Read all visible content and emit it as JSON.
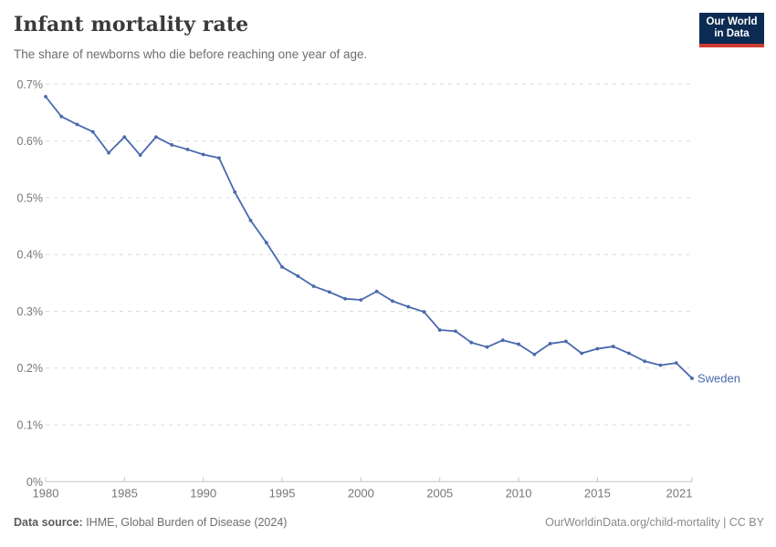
{
  "header": {
    "title": "Infant mortality rate",
    "subtitle": "The share of newborns who die before reaching one year of age.",
    "logo": {
      "line1": "Our World",
      "line2": "in Data",
      "bg_color": "#0c2b52",
      "accent_color": "#d13b32"
    }
  },
  "chart_data": {
    "type": "line",
    "title": "Infant mortality rate",
    "xlabel": "",
    "ylabel": "",
    "unit": "%",
    "xlim": [
      1980,
      2021
    ],
    "ylim": [
      0,
      0.7
    ],
    "grid": "horizontal-dashed",
    "legend_position": "end-of-line-label",
    "x_ticks": [
      1980,
      1985,
      1990,
      1995,
      2000,
      2005,
      2010,
      2015,
      2021
    ],
    "y_ticks": [
      0,
      0.1,
      0.2,
      0.3,
      0.4,
      0.5,
      0.6,
      0.7
    ],
    "y_tick_labels": [
      "0%",
      "0.1%",
      "0.2%",
      "0.3%",
      "0.4%",
      "0.5%",
      "0.6%",
      "0.7%"
    ],
    "series": [
      {
        "name": "Sweden",
        "color": "#4a69ad",
        "x": [
          1980,
          1981,
          1982,
          1983,
          1984,
          1985,
          1986,
          1987,
          1988,
          1989,
          1990,
          1991,
          1992,
          1993,
          1994,
          1995,
          1996,
          1997,
          1998,
          1999,
          2000,
          2001,
          2002,
          2003,
          2004,
          2005,
          2006,
          2007,
          2008,
          2009,
          2010,
          2011,
          2012,
          2013,
          2014,
          2015,
          2016,
          2017,
          2018,
          2019,
          2020,
          2021
        ],
        "values": [
          0.678,
          0.643,
          0.629,
          0.616,
          0.579,
          0.607,
          0.575,
          0.607,
          0.593,
          0.585,
          0.576,
          0.57,
          0.51,
          0.46,
          0.421,
          0.378,
          0.362,
          0.344,
          0.334,
          0.322,
          0.32,
          0.335,
          0.318,
          0.308,
          0.299,
          0.267,
          0.265,
          0.245,
          0.237,
          0.249,
          0.242,
          0.224,
          0.243,
          0.247,
          0.226,
          0.234,
          0.238,
          0.226,
          0.212,
          0.205,
          0.209,
          0.182
        ]
      }
    ],
    "style": {
      "gridline_color": "#dcdcdc",
      "axis_color": "#c4c4c4",
      "tick_label_color": "#767676"
    }
  },
  "footer": {
    "datasource_label": "Data source:",
    "datasource_text": " IHME, Global Burden of Disease (2024)",
    "credit": "OurWorldinData.org/child-mortality | CC BY"
  }
}
